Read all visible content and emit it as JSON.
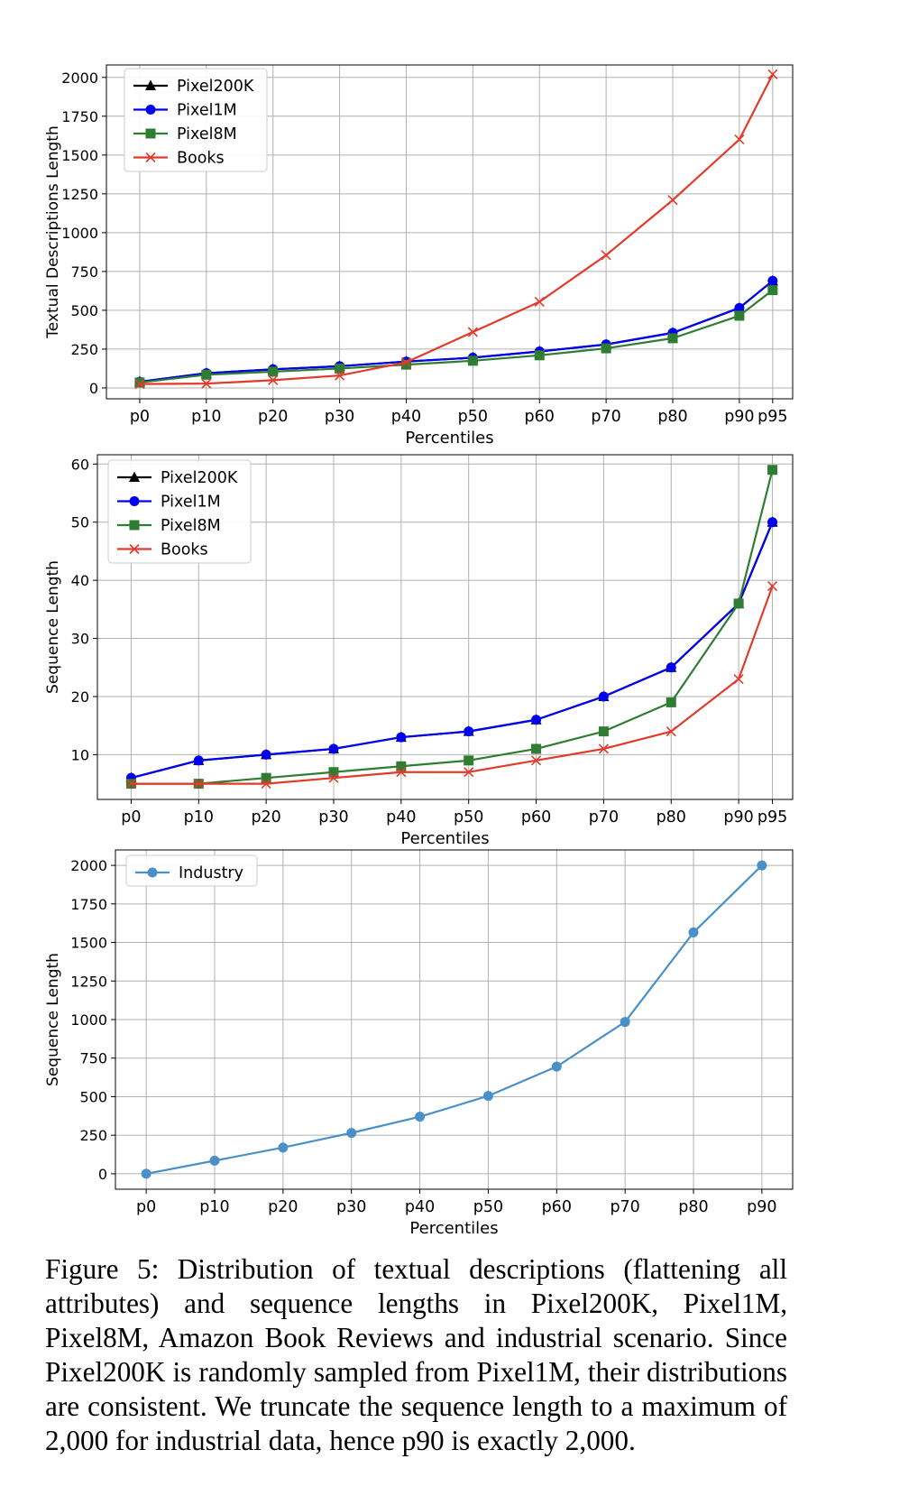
{
  "colors": {
    "pixel200k": "#000000",
    "pixel1m": "#0000ee",
    "pixel8m": "#2e7d32",
    "books": "#e23a2b",
    "industry": "#4a90c8",
    "grid": "#b0b0b0",
    "axis": "#000000"
  },
  "caption": "Figure 5: Distribution of textual descriptions (flattening all attributes) and sequence lengths in Pixel200K, Pixel1M, Pixel8M, Amazon Book Reviews and industrial scenario. Since Pixel200K is randomly sampled from Pixel1M, their distributions are consistent. We truncate the sequence length to a maximum of 2,000 for industrial data, hence p90 is exactly 2,000.",
  "chart_data": [
    {
      "type": "line",
      "title": "",
      "xlabel": "Percentiles",
      "ylabel": "Textual Descriptions Length",
      "x": [
        0,
        10,
        20,
        30,
        40,
        50,
        60,
        70,
        80,
        90,
        95
      ],
      "categories": [
        "p0",
        "p10",
        "p20",
        "p30",
        "p40",
        "p50",
        "p60",
        "p70",
        "p80",
        "p90",
        "p95"
      ],
      "xlim": [
        -5,
        98
      ],
      "ylim": [
        -70,
        2080
      ],
      "yticks": [
        0,
        250,
        500,
        750,
        1000,
        1250,
        1500,
        1750,
        2000
      ],
      "legend_position": "upper-left",
      "grid": true,
      "series": [
        {
          "name": "Pixel200K",
          "marker": "triangle",
          "color_key": "pixel200k",
          "values": [
            40,
            95,
            120,
            140,
            170,
            195,
            235,
            280,
            355,
            515,
            690
          ]
        },
        {
          "name": "Pixel1M",
          "marker": "circle",
          "color_key": "pixel1m",
          "values": [
            40,
            95,
            120,
            140,
            170,
            195,
            235,
            280,
            355,
            515,
            690
          ]
        },
        {
          "name": "Pixel8M",
          "marker": "square",
          "color_key": "pixel8m",
          "values": [
            35,
            85,
            105,
            125,
            150,
            175,
            210,
            255,
            320,
            465,
            630
          ]
        },
        {
          "name": "Books",
          "marker": "x",
          "color_key": "books",
          "values": [
            25,
            28,
            50,
            80,
            165,
            360,
            555,
            855,
            1210,
            1600,
            2020
          ]
        }
      ]
    },
    {
      "type": "line",
      "title": "",
      "xlabel": "Percentiles",
      "ylabel": "Sequence Length",
      "x": [
        0,
        10,
        20,
        30,
        40,
        50,
        60,
        70,
        80,
        90,
        95
      ],
      "categories": [
        "p0",
        "p10",
        "p20",
        "p30",
        "p40",
        "p50",
        "p60",
        "p70",
        "p80",
        "p90",
        "p95"
      ],
      "xlim": [
        -5,
        98
      ],
      "ylim": [
        2.3,
        61.6
      ],
      "yticks": [
        10,
        20,
        30,
        40,
        50,
        60
      ],
      "legend_position": "upper-left",
      "grid": true,
      "series": [
        {
          "name": "Pixel200K",
          "marker": "triangle",
          "color_key": "pixel200k",
          "values": [
            6,
            9,
            10,
            11,
            13,
            14,
            16,
            20,
            25,
            36,
            50
          ]
        },
        {
          "name": "Pixel1M",
          "marker": "circle",
          "color_key": "pixel1m",
          "values": [
            6,
            9,
            10,
            11,
            13,
            14,
            16,
            20,
            25,
            36,
            50
          ]
        },
        {
          "name": "Pixel8M",
          "marker": "square",
          "color_key": "pixel8m",
          "values": [
            5,
            5,
            6,
            7,
            8,
            9,
            11,
            14,
            19,
            36,
            59
          ]
        },
        {
          "name": "Books",
          "marker": "x",
          "color_key": "books",
          "values": [
            5,
            5,
            5,
            6,
            7,
            7,
            9,
            11,
            14,
            23,
            39
          ]
        }
      ]
    },
    {
      "type": "line",
      "title": "",
      "xlabel": "Percentiles",
      "ylabel": "Sequence Length",
      "x": [
        0,
        10,
        20,
        30,
        40,
        50,
        60,
        70,
        80,
        90
      ],
      "categories": [
        "p0",
        "p10",
        "p20",
        "p30",
        "p40",
        "p50",
        "p60",
        "p70",
        "p80",
        "p90"
      ],
      "xlim": [
        -4.5,
        94.5
      ],
      "ylim": [
        -100,
        2100
      ],
      "yticks": [
        0,
        250,
        500,
        750,
        1000,
        1250,
        1500,
        1750,
        2000
      ],
      "legend_position": "upper-left",
      "grid": true,
      "series": [
        {
          "name": "Industry",
          "marker": "circle",
          "color_key": "industry",
          "values": [
            0,
            85,
            170,
            265,
            370,
            505,
            695,
            985,
            1565,
            2000
          ]
        }
      ]
    }
  ]
}
